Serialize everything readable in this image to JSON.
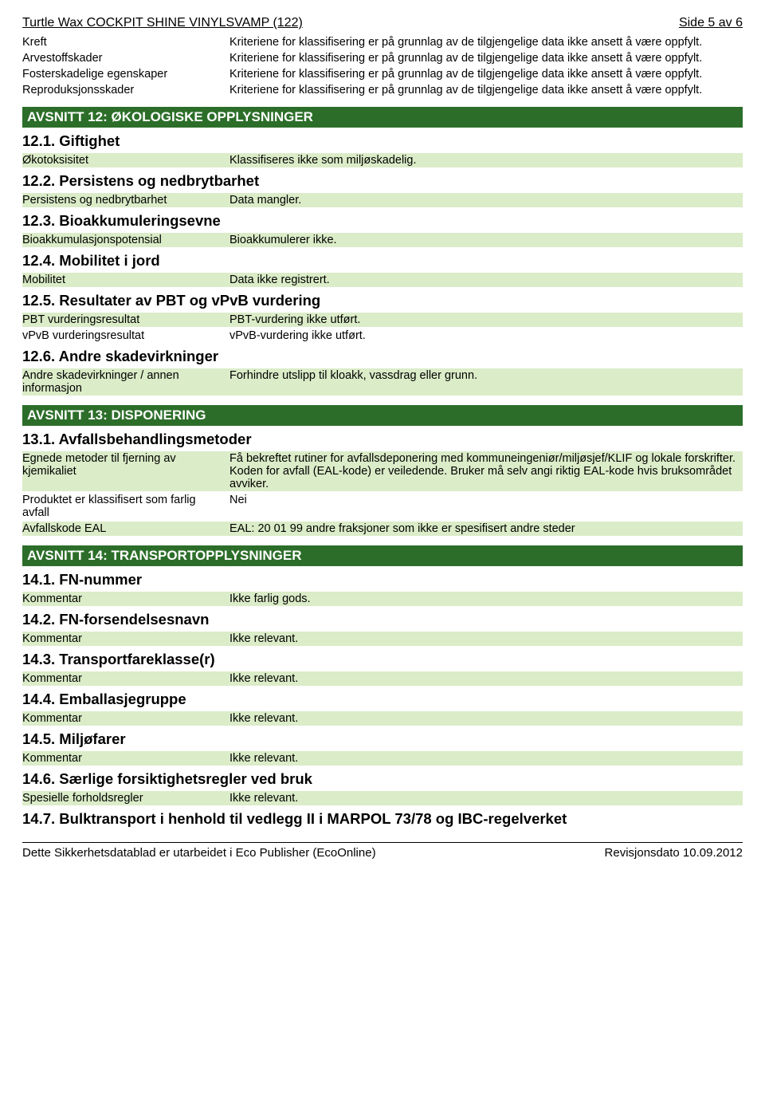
{
  "header": {
    "title": "Turtle Wax COCKPIT SHINE VINYLSVAMP (122)",
    "page_indicator": "Side 5 av 6"
  },
  "top_rows": [
    {
      "label": "Kreft",
      "value": "Kriteriene for klassifisering er på grunnlag av de tilgjengelige data ikke ansett å være oppfylt."
    },
    {
      "label": "Arvestoffskader",
      "value": "Kriteriene for klassifisering er på grunnlag av de tilgjengelige data ikke ansett å være oppfylt."
    },
    {
      "label": "Fosterskadelige egenskaper",
      "value": "Kriteriene for klassifisering er på grunnlag av de tilgjengelige data ikke ansett å være oppfylt."
    },
    {
      "label": "Reproduksjonsskader",
      "value": "Kriteriene for klassifisering er på grunnlag av de tilgjengelige data ikke ansett å være oppfylt."
    }
  ],
  "section12": {
    "bar": "AVSNITT 12: ØKOLOGISKE OPPLYSNINGER",
    "s1": {
      "head": "12.1. Giftighet",
      "rows": [
        {
          "label": "Økotoksisitet",
          "value": "Klassifiseres ikke som miljøskadelig.",
          "shaded": true
        }
      ]
    },
    "s2": {
      "head": "12.2. Persistens og nedbrytbarhet",
      "rows": [
        {
          "label": "Persistens og nedbrytbarhet",
          "value": "Data mangler.",
          "shaded": true
        }
      ]
    },
    "s3": {
      "head": "12.3. Bioakkumuleringsevne",
      "rows": [
        {
          "label": "Bioakkumulasjonspotensial",
          "value": "Bioakkumulerer ikke.",
          "shaded": true
        }
      ]
    },
    "s4": {
      "head": "12.4. Mobilitet i jord",
      "rows": [
        {
          "label": "Mobilitet",
          "value": "Data ikke registrert.",
          "shaded": true
        }
      ]
    },
    "s5": {
      "head": "12.5. Resultater av PBT og vPvB vurdering",
      "rows": [
        {
          "label": "PBT vurderingsresultat",
          "value": "PBT-vurdering ikke utført.",
          "shaded": true
        },
        {
          "label": "vPvB vurderingsresultat",
          "value": "vPvB-vurdering ikke utført.",
          "shaded": false
        }
      ]
    },
    "s6": {
      "head": "12.6. Andre skadevirkninger",
      "rows": [
        {
          "label": "Andre skadevirkninger / annen informasjon",
          "value": "Forhindre utslipp til kloakk, vassdrag eller grunn.",
          "shaded": true
        }
      ]
    }
  },
  "section13": {
    "bar": "AVSNITT 13: DISPONERING",
    "s1": {
      "head": "13.1. Avfallsbehandlingsmetoder",
      "rows": [
        {
          "label": "Egnede metoder til fjerning av kjemikaliet",
          "value": "Få bekreftet rutiner for avfallsdeponering med kommuneingeniør/miljøsjef/KLIF og lokale forskrifter. Koden for avfall (EAL-kode) er veiledende. Bruker må selv angi riktig EAL-kode hvis bruksområdet avviker.",
          "shaded": true
        },
        {
          "label": "Produktet er klassifisert som farlig avfall",
          "value": "Nei",
          "shaded": false
        },
        {
          "label": "Avfallskode EAL",
          "value": "EAL: 20 01 99 andre fraksjoner som ikke er spesifisert andre steder",
          "shaded": true
        }
      ]
    }
  },
  "section14": {
    "bar": "AVSNITT 14: TRANSPORTOPPLYSNINGER",
    "s1": {
      "head": "14.1. FN-nummer",
      "rows": [
        {
          "label": "Kommentar",
          "value": "Ikke farlig gods.",
          "shaded": true
        }
      ]
    },
    "s2": {
      "head": "14.2. FN-forsendelsesnavn",
      "rows": [
        {
          "label": "Kommentar",
          "value": "Ikke relevant.",
          "shaded": true
        }
      ]
    },
    "s3": {
      "head": "14.3. Transportfareklasse(r)",
      "rows": [
        {
          "label": "Kommentar",
          "value": "Ikke relevant.",
          "shaded": true
        }
      ]
    },
    "s4": {
      "head": "14.4. Emballasjegruppe",
      "rows": [
        {
          "label": "Kommentar",
          "value": "Ikke relevant.",
          "shaded": true
        }
      ]
    },
    "s5": {
      "head": "14.5. Miljøfarer",
      "rows": [
        {
          "label": "Kommentar",
          "value": "Ikke relevant.",
          "shaded": true
        }
      ]
    },
    "s6": {
      "head": "14.6. Særlige forsiktighetsregler ved bruk",
      "rows": [
        {
          "label": "Spesielle forholdsregler",
          "value": "Ikke relevant.",
          "shaded": true
        }
      ]
    },
    "s7": {
      "head": "14.7. Bulktransport i henhold til vedlegg II i MARPOL 73/78 og IBC-regelverket",
      "rows": []
    }
  },
  "footer": {
    "left": "Dette Sikkerhetsdatablad er utarbeidet i Eco Publisher (EcoOnline)",
    "right": "Revisjonsdato 10.09.2012"
  }
}
